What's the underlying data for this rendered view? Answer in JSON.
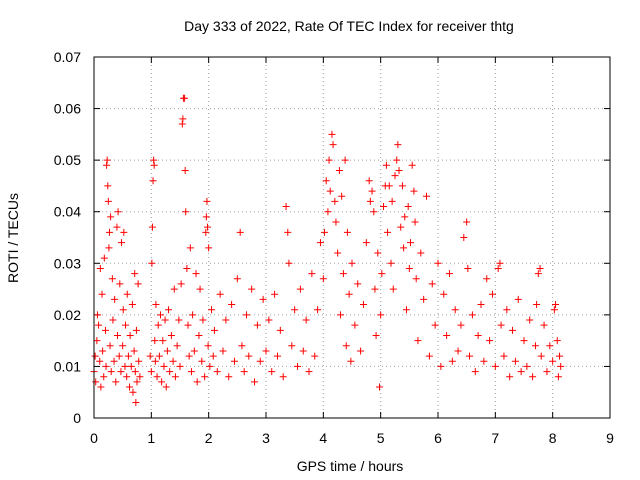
{
  "chart_data": {
    "type": "scatter",
    "title": "Day 333 of 2022, Rate Of TEC Index for receiver thtg",
    "xlabel": "GPS time / hours",
    "ylabel": "ROTI / TECUs",
    "xlim": [
      0,
      9
    ],
    "ylim": [
      0,
      0.07
    ],
    "xticks": [
      0,
      1,
      2,
      3,
      4,
      5,
      6,
      7,
      8,
      9
    ],
    "xtick_labels": [
      "0",
      "1",
      "2",
      "3",
      "4",
      "5",
      "6",
      "7",
      "8",
      "9"
    ],
    "yticks": [
      0,
      0.01,
      0.02,
      0.03,
      0.04,
      0.05,
      0.06,
      0.07
    ],
    "ytick_labels": [
      "0",
      "0.01",
      "0.02",
      "0.03",
      "0.04",
      "0.05",
      "0.06",
      "0.07"
    ],
    "grid": true,
    "marker": "+",
    "color": "#ff0000",
    "series": [
      {
        "name": "ROTI",
        "points": [
          [
            0.0,
            0.009
          ],
          [
            0.02,
            0.012
          ],
          [
            0.03,
            0.007
          ],
          [
            0.05,
            0.015
          ],
          [
            0.06,
            0.02
          ],
          [
            0.08,
            0.018
          ],
          [
            0.1,
            0.011
          ],
          [
            0.11,
            0.029
          ],
          [
            0.12,
            0.006
          ],
          [
            0.14,
            0.024
          ],
          [
            0.15,
            0.013
          ],
          [
            0.17,
            0.008
          ],
          [
            0.18,
            0.031
          ],
          [
            0.2,
            0.017
          ],
          [
            0.21,
            0.01
          ],
          [
            0.22,
            0.049
          ],
          [
            0.23,
            0.05
          ],
          [
            0.24,
            0.045
          ],
          [
            0.25,
            0.042
          ],
          [
            0.26,
            0.033
          ],
          [
            0.27,
            0.036
          ],
          [
            0.28,
            0.014
          ],
          [
            0.29,
            0.039
          ],
          [
            0.3,
            0.009
          ],
          [
            0.32,
            0.027
          ],
          [
            0.33,
            0.019
          ],
          [
            0.35,
            0.011
          ],
          [
            0.36,
            0.023
          ],
          [
            0.38,
            0.007
          ],
          [
            0.4,
            0.037
          ],
          [
            0.41,
            0.016
          ],
          [
            0.42,
            0.04
          ],
          [
            0.44,
            0.012
          ],
          [
            0.45,
            0.026
          ],
          [
            0.47,
            0.009
          ],
          [
            0.48,
            0.034
          ],
          [
            0.5,
            0.014
          ],
          [
            0.51,
            0.021
          ],
          [
            0.52,
            0.036
          ],
          [
            0.54,
            0.01
          ],
          [
            0.55,
            0.018
          ],
          [
            0.57,
            0.008
          ],
          [
            0.58,
            0.024
          ],
          [
            0.6,
            0.012
          ],
          [
            0.62,
            0.006
          ],
          [
            0.63,
            0.016
          ],
          [
            0.65,
            0.01
          ],
          [
            0.67,
            0.022
          ],
          [
            0.68,
            0.005
          ],
          [
            0.7,
            0.013
          ],
          [
            0.71,
            0.028
          ],
          [
            0.72,
            0.009
          ],
          [
            0.73,
            0.003
          ],
          [
            0.74,
            0.017
          ],
          [
            0.75,
            0.007
          ],
          [
            0.77,
            0.026
          ],
          [
            0.78,
            0.011
          ],
          [
            0.8,
            0.008
          ],
          [
            0.98,
            0.012
          ],
          [
            1.0,
            0.009
          ],
          [
            1.01,
            0.03
          ],
          [
            1.02,
            0.037
          ],
          [
            1.03,
            0.046
          ],
          [
            1.04,
            0.05
          ],
          [
            1.05,
            0.049
          ],
          [
            1.06,
            0.015
          ],
          [
            1.07,
            0.011
          ],
          [
            1.08,
            0.022
          ],
          [
            1.1,
            0.008
          ],
          [
            1.12,
            0.018
          ],
          [
            1.14,
            0.012
          ],
          [
            1.16,
            0.02
          ],
          [
            1.18,
            0.007
          ],
          [
            1.2,
            0.015
          ],
          [
            1.22,
            0.01
          ],
          [
            1.24,
            0.019
          ],
          [
            1.26,
            0.006
          ],
          [
            1.28,
            0.013
          ],
          [
            1.3,
            0.021
          ],
          [
            1.32,
            0.009
          ],
          [
            1.35,
            0.016
          ],
          [
            1.38,
            0.011
          ],
          [
            1.4,
            0.025
          ],
          [
            1.42,
            0.008
          ],
          [
            1.45,
            0.014
          ],
          [
            1.48,
            0.019
          ],
          [
            1.5,
            0.01
          ],
          [
            1.52,
            0.026
          ],
          [
            1.54,
            0.057
          ],
          [
            1.55,
            0.058
          ],
          [
            1.56,
            0.062
          ],
          [
            1.58,
            0.062
          ],
          [
            1.59,
            0.048
          ],
          [
            1.6,
            0.04
          ],
          [
            1.62,
            0.029
          ],
          [
            1.64,
            0.018
          ],
          [
            1.66,
            0.012
          ],
          [
            1.68,
            0.033
          ],
          [
            1.7,
            0.009
          ],
          [
            1.72,
            0.02
          ],
          [
            1.75,
            0.013
          ],
          [
            1.78,
            0.028
          ],
          [
            1.8,
            0.007
          ],
          [
            1.83,
            0.016
          ],
          [
            1.85,
            0.025
          ],
          [
            1.88,
            0.011
          ],
          [
            1.9,
            0.019
          ],
          [
            1.93,
            0.008
          ],
          [
            1.95,
            0.036
          ],
          [
            1.96,
            0.039
          ],
          [
            1.97,
            0.042
          ],
          [
            1.98,
            0.037
          ],
          [
            1.99,
            0.014
          ],
          [
            2.0,
            0.033
          ],
          [
            2.02,
            0.01
          ],
          [
            2.05,
            0.021
          ],
          [
            2.08,
            0.012
          ],
          [
            2.1,
            0.017
          ],
          [
            2.15,
            0.009
          ],
          [
            2.2,
            0.024
          ],
          [
            2.25,
            0.013
          ],
          [
            2.3,
            0.019
          ],
          [
            2.35,
            0.008
          ],
          [
            2.4,
            0.022
          ],
          [
            2.45,
            0.011
          ],
          [
            2.5,
            0.027
          ],
          [
            2.55,
            0.036
          ],
          [
            2.58,
            0.014
          ],
          [
            2.62,
            0.009
          ],
          [
            2.66,
            0.02
          ],
          [
            2.7,
            0.012
          ],
          [
            2.75,
            0.025
          ],
          [
            2.8,
            0.007
          ],
          [
            2.85,
            0.018
          ],
          [
            2.9,
            0.011
          ],
          [
            2.95,
            0.023
          ],
          [
            3.0,
            0.013
          ],
          [
            3.05,
            0.019
          ],
          [
            3.1,
            0.009
          ],
          [
            3.15,
            0.024
          ],
          [
            3.2,
            0.012
          ],
          [
            3.25,
            0.017
          ],
          [
            3.3,
            0.008
          ],
          [
            3.35,
            0.041
          ],
          [
            3.38,
            0.036
          ],
          [
            3.4,
            0.03
          ],
          [
            3.45,
            0.014
          ],
          [
            3.5,
            0.021
          ],
          [
            3.55,
            0.01
          ],
          [
            3.6,
            0.025
          ],
          [
            3.65,
            0.013
          ],
          [
            3.7,
            0.019
          ],
          [
            3.75,
            0.009
          ],
          [
            3.8,
            0.028
          ],
          [
            3.85,
            0.012
          ],
          [
            3.9,
            0.021
          ],
          [
            3.95,
            0.034
          ],
          [
            4.0,
            0.027
          ],
          [
            4.02,
            0.036
          ],
          [
            4.05,
            0.046
          ],
          [
            4.08,
            0.04
          ],
          [
            4.1,
            0.05
          ],
          [
            4.12,
            0.044
          ],
          [
            4.15,
            0.055
          ],
          [
            4.17,
            0.053
          ],
          [
            4.2,
            0.042
          ],
          [
            4.22,
            0.038
          ],
          [
            4.25,
            0.032
          ],
          [
            4.28,
            0.048
          ],
          [
            4.3,
            0.02
          ],
          [
            4.32,
            0.043
          ],
          [
            4.35,
            0.028
          ],
          [
            4.38,
            0.05
          ],
          [
            4.4,
            0.014
          ],
          [
            4.42,
            0.036
          ],
          [
            4.45,
            0.024
          ],
          [
            4.48,
            0.011
          ],
          [
            4.5,
            0.03
          ],
          [
            4.55,
            0.018
          ],
          [
            4.6,
            0.026
          ],
          [
            4.65,
            0.013
          ],
          [
            4.7,
            0.022
          ],
          [
            4.75,
            0.034
          ],
          [
            4.8,
            0.046
          ],
          [
            4.82,
            0.042
          ],
          [
            4.85,
            0.044
          ],
          [
            4.88,
            0.04
          ],
          [
            4.9,
            0.025
          ],
          [
            4.92,
            0.016
          ],
          [
            4.95,
            0.032
          ],
          [
            4.98,
            0.006
          ],
          [
            5.0,
            0.02
          ],
          [
            5.02,
            0.028
          ],
          [
            5.05,
            0.041
          ],
          [
            5.08,
            0.045
          ],
          [
            5.1,
            0.049
          ],
          [
            5.12,
            0.036
          ],
          [
            5.15,
            0.045
          ],
          [
            5.18,
            0.03
          ],
          [
            5.2,
            0.042
          ],
          [
            5.22,
            0.025
          ],
          [
            5.25,
            0.047
          ],
          [
            5.28,
            0.05
          ],
          [
            5.3,
            0.053
          ],
          [
            5.32,
            0.048
          ],
          [
            5.35,
            0.037
          ],
          [
            5.38,
            0.045
          ],
          [
            5.4,
            0.033
          ],
          [
            5.42,
            0.039
          ],
          [
            5.45,
            0.021
          ],
          [
            5.48,
            0.041
          ],
          [
            5.5,
            0.029
          ],
          [
            5.52,
            0.034
          ],
          [
            5.55,
            0.049
          ],
          [
            5.58,
            0.044
          ],
          [
            5.6,
            0.038
          ],
          [
            5.62,
            0.027
          ],
          [
            5.65,
            0.015
          ],
          [
            5.7,
            0.032
          ],
          [
            5.75,
            0.023
          ],
          [
            5.8,
            0.043
          ],
          [
            5.85,
            0.012
          ],
          [
            5.9,
            0.026
          ],
          [
            5.95,
            0.018
          ],
          [
            6.0,
            0.03
          ],
          [
            6.05,
            0.01
          ],
          [
            6.1,
            0.024
          ],
          [
            6.15,
            0.016
          ],
          [
            6.2,
            0.028
          ],
          [
            6.25,
            0.011
          ],
          [
            6.3,
            0.021
          ],
          [
            6.35,
            0.013
          ],
          [
            6.4,
            0.018
          ],
          [
            6.45,
            0.035
          ],
          [
            6.5,
            0.038
          ],
          [
            6.52,
            0.029
          ],
          [
            6.55,
            0.012
          ],
          [
            6.6,
            0.02
          ],
          [
            6.65,
            0.009
          ],
          [
            6.7,
            0.016
          ],
          [
            6.75,
            0.022
          ],
          [
            6.8,
            0.011
          ],
          [
            6.85,
            0.027
          ],
          [
            6.9,
            0.015
          ],
          [
            6.95,
            0.024
          ],
          [
            7.0,
            0.01
          ],
          [
            7.05,
            0.029
          ],
          [
            7.08,
            0.03
          ],
          [
            7.1,
            0.018
          ],
          [
            7.15,
            0.012
          ],
          [
            7.2,
            0.021
          ],
          [
            7.25,
            0.008
          ],
          [
            7.3,
            0.017
          ],
          [
            7.35,
            0.011
          ],
          [
            7.4,
            0.023
          ],
          [
            7.45,
            0.009
          ],
          [
            7.5,
            0.015
          ],
          [
            7.55,
            0.01
          ],
          [
            7.6,
            0.019
          ],
          [
            7.65,
            0.008
          ],
          [
            7.7,
            0.014
          ],
          [
            7.72,
            0.022
          ],
          [
            7.75,
            0.028
          ],
          [
            7.78,
            0.029
          ],
          [
            7.8,
            0.012
          ],
          [
            7.85,
            0.018
          ],
          [
            7.9,
            0.009
          ],
          [
            7.95,
            0.014
          ],
          [
            8.0,
            0.011
          ],
          [
            8.03,
            0.021
          ],
          [
            8.05,
            0.022
          ],
          [
            8.08,
            0.015
          ],
          [
            8.1,
            0.008
          ],
          [
            8.12,
            0.012
          ],
          [
            8.14,
            0.01
          ]
        ]
      }
    ]
  }
}
